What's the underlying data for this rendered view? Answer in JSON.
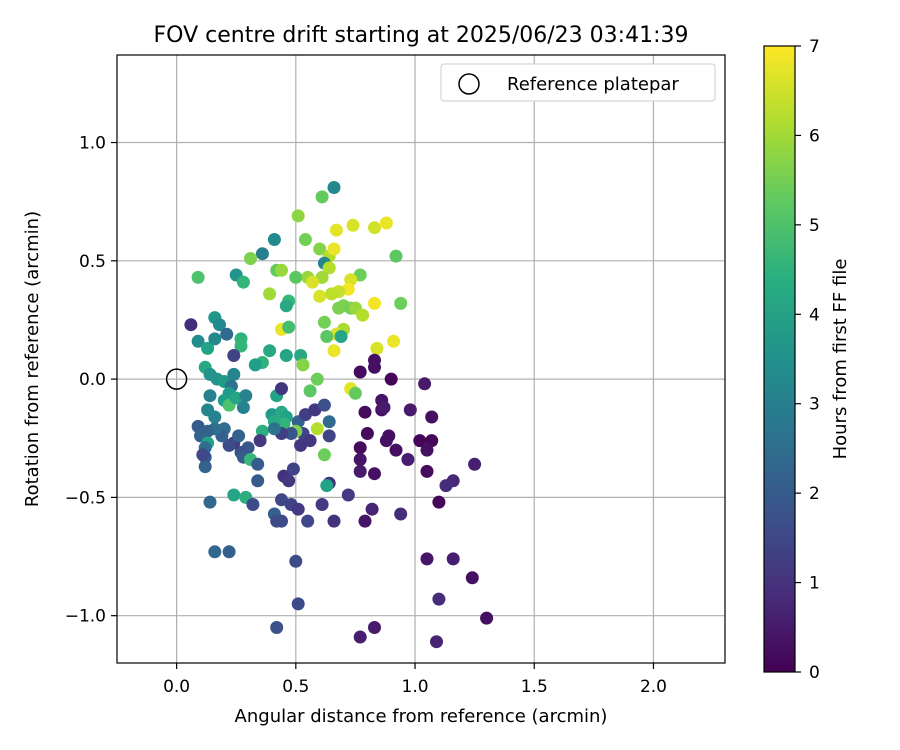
{
  "chart_data": {
    "type": "scatter",
    "title": "FOV centre drift starting at 2025/06/23 03:41:39",
    "xlabel": "Angular distance from reference (arcmin)",
    "ylabel": "Rotation from reference (arcmin)",
    "xlim": [
      -0.25,
      2.3
    ],
    "ylim": [
      -1.2,
      1.37
    ],
    "xticks": [
      0.0,
      0.5,
      1.0,
      1.5,
      2.0
    ],
    "xtick_labels": [
      "0.0",
      "0.5",
      "1.0",
      "1.5",
      "2.0"
    ],
    "yticks": [
      -1.0,
      -0.5,
      0.0,
      0.5,
      1.0
    ],
    "ytick_labels": [
      "−1.0",
      "−0.5",
      "0.0",
      "0.5",
      "1.0"
    ],
    "grid": true,
    "legend": {
      "position": "top-right",
      "entries": [
        "Reference platepar"
      ]
    },
    "reference_point": {
      "x": 0.0,
      "y": 0.0
    },
    "colorbar": {
      "label": "Hours from first FF file",
      "range": [
        0,
        7
      ],
      "ticks": [
        0,
        1,
        2,
        3,
        4,
        5,
        6,
        7
      ],
      "tick_labels": [
        "0",
        "1",
        "2",
        "3",
        "4",
        "5",
        "6",
        "7"
      ],
      "colormap": "viridis"
    },
    "points": [
      {
        "x": 0.66,
        "y": 0.81,
        "h": 3.3
      },
      {
        "x": 0.51,
        "y": 0.69,
        "h": 5.8
      },
      {
        "x": 0.61,
        "y": 0.77,
        "h": 5.3
      },
      {
        "x": 0.74,
        "y": 0.65,
        "h": 6.6
      },
      {
        "x": 0.83,
        "y": 0.64,
        "h": 6.5
      },
      {
        "x": 0.88,
        "y": 0.66,
        "h": 6.8
      },
      {
        "x": 0.67,
        "y": 0.63,
        "h": 6.7
      },
      {
        "x": 0.54,
        "y": 0.59,
        "h": 5.5
      },
      {
        "x": 0.41,
        "y": 0.59,
        "h": 3.3
      },
      {
        "x": 0.36,
        "y": 0.53,
        "h": 3.0
      },
      {
        "x": 0.31,
        "y": 0.51,
        "h": 5.6
      },
      {
        "x": 0.6,
        "y": 0.55,
        "h": 5.7
      },
      {
        "x": 0.64,
        "y": 0.52,
        "h": 6.2
      },
      {
        "x": 0.66,
        "y": 0.55,
        "h": 6.8
      },
      {
        "x": 0.92,
        "y": 0.52,
        "h": 5.2
      },
      {
        "x": 0.62,
        "y": 0.49,
        "h": 3.2
      },
      {
        "x": 0.64,
        "y": 0.47,
        "h": 6.2
      },
      {
        "x": 0.77,
        "y": 0.44,
        "h": 5.4
      },
      {
        "x": 0.61,
        "y": 0.43,
        "h": 6.0
      },
      {
        "x": 0.55,
        "y": 0.43,
        "h": 5.9
      },
      {
        "x": 0.42,
        "y": 0.46,
        "h": 5.3
      },
      {
        "x": 0.44,
        "y": 0.46,
        "h": 5.9
      },
      {
        "x": 0.25,
        "y": 0.44,
        "h": 3.6
      },
      {
        "x": 0.28,
        "y": 0.41,
        "h": 4.6
      },
      {
        "x": 0.09,
        "y": 0.43,
        "h": 5.0
      },
      {
        "x": 0.5,
        "y": 0.43,
        "h": 5.2
      },
      {
        "x": 0.73,
        "y": 0.42,
        "h": 6.6
      },
      {
        "x": 0.72,
        "y": 0.38,
        "h": 6.9
      },
      {
        "x": 0.68,
        "y": 0.37,
        "h": 6.4
      },
      {
        "x": 0.65,
        "y": 0.36,
        "h": 6.3
      },
      {
        "x": 0.6,
        "y": 0.35,
        "h": 6.6
      },
      {
        "x": 0.57,
        "y": 0.41,
        "h": 6.6
      },
      {
        "x": 0.47,
        "y": 0.33,
        "h": 4.7
      },
      {
        "x": 0.46,
        "y": 0.31,
        "h": 4.2
      },
      {
        "x": 0.39,
        "y": 0.36,
        "h": 6.0
      },
      {
        "x": 0.68,
        "y": 0.3,
        "h": 5.6
      },
      {
        "x": 0.7,
        "y": 0.31,
        "h": 5.6
      },
      {
        "x": 0.73,
        "y": 0.3,
        "h": 5.5
      },
      {
        "x": 0.75,
        "y": 0.3,
        "h": 5.9
      },
      {
        "x": 0.78,
        "y": 0.27,
        "h": 6.2
      },
      {
        "x": 0.83,
        "y": 0.32,
        "h": 6.9
      },
      {
        "x": 0.94,
        "y": 0.32,
        "h": 5.4
      },
      {
        "x": 0.62,
        "y": 0.24,
        "h": 5.5
      },
      {
        "x": 0.44,
        "y": 0.21,
        "h": 6.8
      },
      {
        "x": 0.47,
        "y": 0.22,
        "h": 4.9
      },
      {
        "x": 0.7,
        "y": 0.21,
        "h": 6.1
      },
      {
        "x": 0.67,
        "y": 0.19,
        "h": 6.6
      },
      {
        "x": 0.63,
        "y": 0.18,
        "h": 5.2
      },
      {
        "x": 0.69,
        "y": 0.18,
        "h": 4.1
      },
      {
        "x": 0.66,
        "y": 0.12,
        "h": 6.8
      },
      {
        "x": 0.84,
        "y": 0.13,
        "h": 6.6
      },
      {
        "x": 0.91,
        "y": 0.16,
        "h": 6.8
      },
      {
        "x": 0.06,
        "y": 0.23,
        "h": 0.9
      },
      {
        "x": 0.16,
        "y": 0.26,
        "h": 3.7
      },
      {
        "x": 0.18,
        "y": 0.23,
        "h": 3.3
      },
      {
        "x": 0.09,
        "y": 0.16,
        "h": 3.4
      },
      {
        "x": 0.13,
        "y": 0.13,
        "h": 4.0
      },
      {
        "x": 0.16,
        "y": 0.17,
        "h": 3.3
      },
      {
        "x": 0.21,
        "y": 0.19,
        "h": 2.4
      },
      {
        "x": 0.27,
        "y": 0.17,
        "h": 4.5
      },
      {
        "x": 0.27,
        "y": 0.14,
        "h": 4.6
      },
      {
        "x": 0.24,
        "y": 0.1,
        "h": 1.4
      },
      {
        "x": 0.39,
        "y": 0.12,
        "h": 4.2
      },
      {
        "x": 0.36,
        "y": 0.07,
        "h": 4.5
      },
      {
        "x": 0.33,
        "y": 0.06,
        "h": 3.9
      },
      {
        "x": 0.46,
        "y": 0.1,
        "h": 4.1
      },
      {
        "x": 0.52,
        "y": 0.1,
        "h": 4.2
      },
      {
        "x": 0.53,
        "y": 0.06,
        "h": 5.7
      },
      {
        "x": 0.12,
        "y": 0.05,
        "h": 4.2
      },
      {
        "x": 0.14,
        "y": 0.02,
        "h": 3.6
      },
      {
        "x": 0.17,
        "y": 0.0,
        "h": 3.6
      },
      {
        "x": 0.2,
        "y": -0.01,
        "h": 3.8
      },
      {
        "x": 0.24,
        "y": 0.02,
        "h": 3.2
      },
      {
        "x": 0.23,
        "y": -0.03,
        "h": 2.6
      },
      {
        "x": 0.22,
        "y": -0.06,
        "h": 3.8
      },
      {
        "x": 0.2,
        "y": -0.09,
        "h": 3.9
      },
      {
        "x": 0.22,
        "y": -0.11,
        "h": 5.0
      },
      {
        "x": 0.25,
        "y": -0.08,
        "h": 4.1
      },
      {
        "x": 0.29,
        "y": -0.07,
        "h": 3.1
      },
      {
        "x": 0.28,
        "y": -0.12,
        "h": 3.1
      },
      {
        "x": 0.14,
        "y": -0.07,
        "h": 3.1
      },
      {
        "x": 0.13,
        "y": -0.13,
        "h": 3.2
      },
      {
        "x": 0.16,
        "y": -0.16,
        "h": 3.1
      },
      {
        "x": 0.42,
        "y": -0.07,
        "h": 4.0
      },
      {
        "x": 0.44,
        "y": -0.04,
        "h": 1.1
      },
      {
        "x": 0.59,
        "y": 0.0,
        "h": 5.4
      },
      {
        "x": 0.56,
        "y": -0.05,
        "h": 5.2
      },
      {
        "x": 0.73,
        "y": -0.04,
        "h": 6.7
      },
      {
        "x": 0.75,
        "y": -0.06,
        "h": 5.3
      },
      {
        "x": 0.4,
        "y": -0.15,
        "h": 3.8
      },
      {
        "x": 0.44,
        "y": -0.14,
        "h": 4.2
      },
      {
        "x": 0.46,
        "y": -0.16,
        "h": 4.0
      },
      {
        "x": 0.45,
        "y": -0.19,
        "h": 4.6
      },
      {
        "x": 0.41,
        "y": -0.18,
        "h": 4.3
      },
      {
        "x": 0.51,
        "y": -0.18,
        "h": 2.1
      },
      {
        "x": 0.54,
        "y": -0.15,
        "h": 1.3
      },
      {
        "x": 0.58,
        "y": -0.13,
        "h": 1.1
      },
      {
        "x": 0.62,
        "y": -0.11,
        "h": 1.7
      },
      {
        "x": 0.53,
        "y": -0.23,
        "h": 1.4
      },
      {
        "x": 0.5,
        "y": -0.22,
        "h": 5.6
      },
      {
        "x": 0.59,
        "y": -0.21,
        "h": 6.2
      },
      {
        "x": 0.64,
        "y": -0.18,
        "h": 2.4
      },
      {
        "x": 0.64,
        "y": -0.24,
        "h": 1.4
      },
      {
        "x": 0.52,
        "y": -0.28,
        "h": 1.1
      },
      {
        "x": 0.56,
        "y": -0.26,
        "h": 1.1
      },
      {
        "x": 0.48,
        "y": -0.23,
        "h": 1.8
      },
      {
        "x": 0.44,
        "y": -0.23,
        "h": 1.3
      },
      {
        "x": 0.36,
        "y": -0.22,
        "h": 4.4
      },
      {
        "x": 0.41,
        "y": -0.21,
        "h": 2.7
      },
      {
        "x": 0.35,
        "y": -0.26,
        "h": 1.2
      },
      {
        "x": 0.3,
        "y": -0.29,
        "h": 1.9
      },
      {
        "x": 0.27,
        "y": -0.31,
        "h": 1.8
      },
      {
        "x": 0.28,
        "y": -0.33,
        "h": 2.0
      },
      {
        "x": 0.31,
        "y": -0.34,
        "h": 4.7
      },
      {
        "x": 0.34,
        "y": -0.36,
        "h": 2.0
      },
      {
        "x": 0.24,
        "y": -0.27,
        "h": 1.2
      },
      {
        "x": 0.22,
        "y": -0.28,
        "h": 1.6
      },
      {
        "x": 0.26,
        "y": -0.24,
        "h": 2.2
      },
      {
        "x": 0.2,
        "y": -0.21,
        "h": 2.5
      },
      {
        "x": 0.19,
        "y": -0.24,
        "h": 2.1
      },
      {
        "x": 0.16,
        "y": -0.21,
        "h": 2.6
      },
      {
        "x": 0.13,
        "y": -0.22,
        "h": 2.2
      },
      {
        "x": 0.09,
        "y": -0.2,
        "h": 2.0
      },
      {
        "x": 0.1,
        "y": -0.24,
        "h": 2.2
      },
      {
        "x": 0.13,
        "y": -0.27,
        "h": 4.0
      },
      {
        "x": 0.12,
        "y": -0.29,
        "h": 2.5
      },
      {
        "x": 0.12,
        "y": -0.33,
        "h": 1.9
      },
      {
        "x": 0.12,
        "y": -0.37,
        "h": 2.2
      },
      {
        "x": 0.11,
        "y": -0.32,
        "h": 1.5
      },
      {
        "x": 0.34,
        "y": -0.43,
        "h": 2.0
      },
      {
        "x": 0.45,
        "y": -0.41,
        "h": 1.0
      },
      {
        "x": 0.49,
        "y": -0.38,
        "h": 1.4
      },
      {
        "x": 0.47,
        "y": -0.43,
        "h": 1.1
      },
      {
        "x": 0.64,
        "y": -0.44,
        "h": 1.0
      },
      {
        "x": 0.63,
        "y": -0.45,
        "h": 4.0
      },
      {
        "x": 0.62,
        "y": -0.32,
        "h": 5.4
      },
      {
        "x": 0.72,
        "y": -0.49,
        "h": 1.2
      },
      {
        "x": 0.24,
        "y": -0.49,
        "h": 4.1
      },
      {
        "x": 0.29,
        "y": -0.5,
        "h": 4.4
      },
      {
        "x": 0.32,
        "y": -0.53,
        "h": 1.6
      },
      {
        "x": 0.14,
        "y": -0.52,
        "h": 2.3
      },
      {
        "x": 0.41,
        "y": -0.57,
        "h": 2.1
      },
      {
        "x": 0.42,
        "y": -0.6,
        "h": 1.6
      },
      {
        "x": 0.44,
        "y": -0.51,
        "h": 1.5
      },
      {
        "x": 0.48,
        "y": -0.53,
        "h": 1.4
      },
      {
        "x": 0.44,
        "y": -0.6,
        "h": 1.6
      },
      {
        "x": 0.51,
        "y": -0.55,
        "h": 1.2
      },
      {
        "x": 0.55,
        "y": -0.6,
        "h": 1.5
      },
      {
        "x": 0.61,
        "y": -0.53,
        "h": 1.2
      },
      {
        "x": 0.66,
        "y": -0.6,
        "h": 1.0
      },
      {
        "x": 0.16,
        "y": -0.73,
        "h": 2.3
      },
      {
        "x": 0.22,
        "y": -0.73,
        "h": 2.1
      },
      {
        "x": 0.5,
        "y": -0.77,
        "h": 1.6
      },
      {
        "x": 0.51,
        "y": -0.95,
        "h": 1.6
      },
      {
        "x": 0.42,
        "y": -1.05,
        "h": 1.7
      },
      {
        "x": 0.77,
        "y": 0.03,
        "h": 0.2
      },
      {
        "x": 0.83,
        "y": 0.08,
        "h": 0.3
      },
      {
        "x": 0.83,
        "y": 0.05,
        "h": 0.3
      },
      {
        "x": 0.9,
        "y": 0.0,
        "h": 0.1
      },
      {
        "x": 1.04,
        "y": -0.02,
        "h": 0.5
      },
      {
        "x": 0.86,
        "y": -0.09,
        "h": 0.4
      },
      {
        "x": 0.86,
        "y": -0.13,
        "h": 0.3
      },
      {
        "x": 0.87,
        "y": -0.12,
        "h": 0.5
      },
      {
        "x": 0.98,
        "y": -0.13,
        "h": 0.5
      },
      {
        "x": 0.79,
        "y": -0.14,
        "h": 0.2
      },
      {
        "x": 1.07,
        "y": -0.16,
        "h": 0.3
      },
      {
        "x": 0.8,
        "y": -0.23,
        "h": 0.2
      },
      {
        "x": 0.89,
        "y": -0.24,
        "h": 0.3
      },
      {
        "x": 0.88,
        "y": -0.26,
        "h": 0.3
      },
      {
        "x": 1.02,
        "y": -0.26,
        "h": 0.1
      },
      {
        "x": 1.07,
        "y": -0.26,
        "h": 0.1
      },
      {
        "x": 0.77,
        "y": -0.29,
        "h": 0.2
      },
      {
        "x": 0.92,
        "y": -0.3,
        "h": 0.3
      },
      {
        "x": 1.05,
        "y": -0.3,
        "h": 0.3
      },
      {
        "x": 0.77,
        "y": -0.34,
        "h": 0.4
      },
      {
        "x": 0.97,
        "y": -0.34,
        "h": 0.6
      },
      {
        "x": 0.77,
        "y": -0.39,
        "h": 0.5
      },
      {
        "x": 0.83,
        "y": -0.4,
        "h": 0.3
      },
      {
        "x": 1.05,
        "y": -0.39,
        "h": 0.2
      },
      {
        "x": 1.25,
        "y": -0.36,
        "h": 0.6
      },
      {
        "x": 1.16,
        "y": -0.43,
        "h": 0.8
      },
      {
        "x": 1.13,
        "y": -0.45,
        "h": 0.9
      },
      {
        "x": 1.1,
        "y": -0.52,
        "h": 0.1
      },
      {
        "x": 0.82,
        "y": -0.55,
        "h": 0.7
      },
      {
        "x": 0.79,
        "y": -0.6,
        "h": 0.4
      },
      {
        "x": 0.94,
        "y": -0.57,
        "h": 0.9
      },
      {
        "x": 1.05,
        "y": -0.76,
        "h": 0.4
      },
      {
        "x": 1.16,
        "y": -0.76,
        "h": 0.6
      },
      {
        "x": 1.24,
        "y": -0.84,
        "h": 0.3
      },
      {
        "x": 1.1,
        "y": -0.93,
        "h": 0.9
      },
      {
        "x": 1.3,
        "y": -1.01,
        "h": 0.3
      },
      {
        "x": 0.77,
        "y": -1.09,
        "h": 0.6
      },
      {
        "x": 0.83,
        "y": -1.05,
        "h": 0.5
      },
      {
        "x": 1.09,
        "y": -1.11,
        "h": 0.7
      }
    ]
  }
}
